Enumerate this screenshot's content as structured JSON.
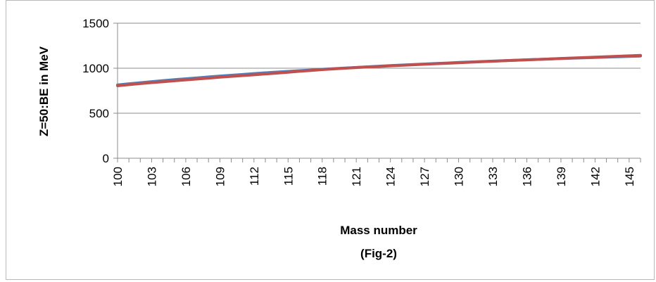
{
  "chart_data": {
    "type": "line",
    "title": "",
    "xlabel": "Mass number",
    "xlabel_note": "(Fig-2)",
    "ylabel": "Z=50:BE in MeV",
    "ylim": [
      0,
      1500
    ],
    "yticks": [
      0,
      500,
      1000,
      1500
    ],
    "xticks": [
      100,
      103,
      106,
      109,
      112,
      115,
      118,
      121,
      124,
      127,
      130,
      133,
      136,
      139,
      142,
      145
    ],
    "x": [
      100,
      101,
      102,
      103,
      104,
      105,
      106,
      107,
      108,
      109,
      110,
      111,
      112,
      113,
      114,
      115,
      116,
      117,
      118,
      119,
      120,
      121,
      122,
      123,
      124,
      125,
      126,
      127,
      128,
      129,
      130,
      131,
      132,
      133,
      134,
      135,
      136,
      137,
      138,
      139,
      140,
      141,
      142,
      143,
      144,
      145,
      146
    ],
    "grid": "horizontal",
    "legend": "none",
    "series": [
      {
        "color": "#4f81bd",
        "values": [
          815,
          827,
          839,
          851,
          862,
          873,
          883,
          893,
          903,
          913,
          922,
          931,
          940,
          949,
          957,
          965,
          973,
          980,
          988,
          995,
          1002,
          1009,
          1016,
          1022,
          1029,
          1035,
          1041,
          1047,
          1053,
          1058,
          1064,
          1069,
          1074,
          1079,
          1084,
          1089,
          1094,
          1098,
          1103,
          1107,
          1111,
          1115,
          1119,
          1123,
          1127,
          1131,
          1135
        ]
      },
      {
        "color": "#c0504d",
        "values": [
          805,
          817,
          829,
          840,
          850,
          860,
          870,
          880,
          890,
          900,
          909,
          918,
          927,
          936,
          945,
          955,
          966,
          975,
          984,
          992,
          1000,
          1007,
          1014,
          1020,
          1026,
          1032,
          1038,
          1044,
          1050,
          1055,
          1061,
          1066,
          1072,
          1077,
          1083,
          1088,
          1093,
          1098,
          1103,
          1108,
          1113,
          1118,
          1123,
          1128,
          1133,
          1138,
          1143
        ]
      }
    ]
  }
}
